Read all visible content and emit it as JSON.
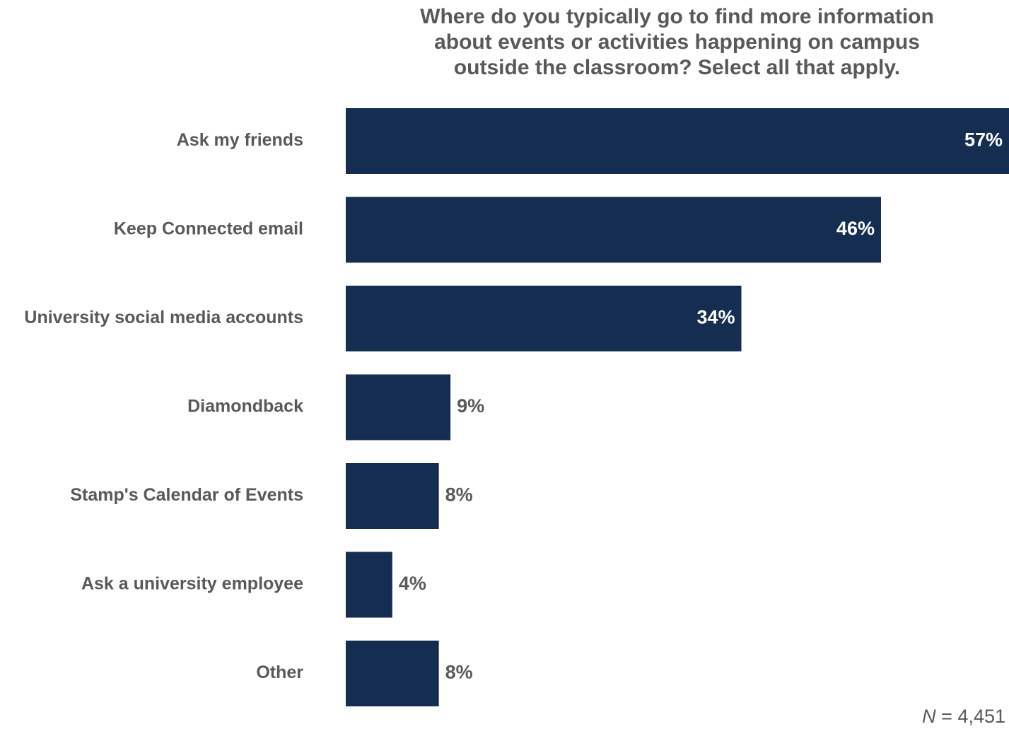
{
  "chart_data": {
    "type": "bar",
    "orientation": "horizontal",
    "title_lines": [
      "Where do you typically go to find more information",
      "about events or activities happening on campus",
      "outside the classroom? Select all that apply."
    ],
    "categories": [
      "Ask my friends",
      "Keep Connected email",
      "University social media accounts",
      "Diamondback",
      "Stamp's Calendar of Events",
      "Ask a university employee",
      "Other"
    ],
    "values": [
      57,
      46,
      34,
      9,
      8,
      4,
      8
    ],
    "value_labels": [
      "57%",
      "46%",
      "34%",
      "9%",
      "8%",
      "4%",
      "8%"
    ],
    "xlim": [
      0,
      57
    ],
    "bar_color": "#142d51",
    "inside_label_color": "#ffffff",
    "outside_label_color": "#595959",
    "grid": false,
    "legend": "none"
  },
  "note": {
    "n_symbol": "N",
    "n_text": "= 4,451"
  }
}
